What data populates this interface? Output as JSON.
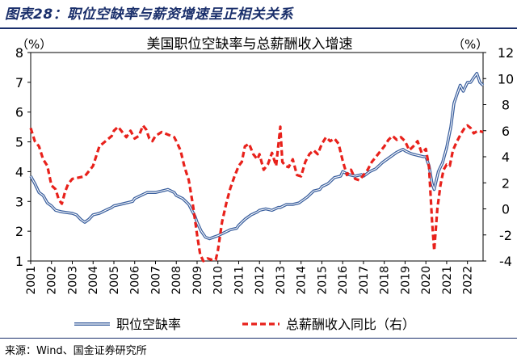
{
  "figure_title": "图表28：职位空缺率与薪资增速呈正相关关系",
  "source": {
    "label": "来源：",
    "text": "Wind、国金证券研究所"
  },
  "chart_data": {
    "type": "line",
    "title": "美国职位空缺率与总薪酬收入增速",
    "y_left_unit": "（%）",
    "y_right_unit": "（%）",
    "x_ticks": [
      "2001",
      "2002",
      "2003",
      "2004",
      "2005",
      "2006",
      "2007",
      "2008",
      "2009",
      "2010",
      "2011",
      "2012",
      "2013",
      "2014",
      "2015",
      "2016",
      "2017",
      "2018",
      "2019",
      "2020",
      "2021",
      "2022"
    ],
    "y_left_ticks": [
      "8",
      "7",
      "6",
      "5",
      "4",
      "3",
      "2",
      "1"
    ],
    "y_right_ticks": [
      "12",
      "10",
      "8",
      "6",
      "4",
      "2",
      "0",
      "-2",
      "-4"
    ],
    "ylim_left": [
      1,
      8
    ],
    "ylim_right": [
      -4,
      12
    ],
    "xlim": [
      2001,
      2022.75
    ],
    "legend_position": "bottom",
    "series": [
      {
        "name": "职位空缺率",
        "axis": "left",
        "color": "#3a5f9e",
        "style": "solid",
        "points": [
          [
            2001.0,
            3.85
          ],
          [
            2001.2,
            3.6
          ],
          [
            2001.4,
            3.3
          ],
          [
            2001.6,
            3.2
          ],
          [
            2001.8,
            2.95
          ],
          [
            2002.0,
            2.85
          ],
          [
            2002.2,
            2.7
          ],
          [
            2002.5,
            2.65
          ],
          [
            2002.8,
            2.62
          ],
          [
            2003.0,
            2.6
          ],
          [
            2003.2,
            2.55
          ],
          [
            2003.4,
            2.4
          ],
          [
            2003.6,
            2.3
          ],
          [
            2003.8,
            2.4
          ],
          [
            2004.0,
            2.55
          ],
          [
            2004.3,
            2.6
          ],
          [
            2004.6,
            2.7
          ],
          [
            2004.9,
            2.8
          ],
          [
            2005.0,
            2.85
          ],
          [
            2005.3,
            2.9
          ],
          [
            2005.6,
            2.95
          ],
          [
            2005.9,
            3.0
          ],
          [
            2006.0,
            3.1
          ],
          [
            2006.3,
            3.2
          ],
          [
            2006.6,
            3.3
          ],
          [
            2006.9,
            3.3
          ],
          [
            2007.0,
            3.3
          ],
          [
            2007.3,
            3.35
          ],
          [
            2007.6,
            3.4
          ],
          [
            2007.9,
            3.3
          ],
          [
            2008.0,
            3.2
          ],
          [
            2008.3,
            3.1
          ],
          [
            2008.6,
            2.9
          ],
          [
            2008.9,
            2.5
          ],
          [
            2009.0,
            2.3
          ],
          [
            2009.2,
            2.0
          ],
          [
            2009.4,
            1.8
          ],
          [
            2009.6,
            1.75
          ],
          [
            2009.8,
            1.8
          ],
          [
            2010.0,
            1.85
          ],
          [
            2010.3,
            1.95
          ],
          [
            2010.6,
            2.05
          ],
          [
            2010.9,
            2.1
          ],
          [
            2011.0,
            2.2
          ],
          [
            2011.3,
            2.4
          ],
          [
            2011.6,
            2.55
          ],
          [
            2011.9,
            2.65
          ],
          [
            2012.0,
            2.7
          ],
          [
            2012.3,
            2.75
          ],
          [
            2012.6,
            2.7
          ],
          [
            2012.9,
            2.8
          ],
          [
            2013.0,
            2.8
          ],
          [
            2013.3,
            2.9
          ],
          [
            2013.6,
            2.9
          ],
          [
            2013.9,
            2.95
          ],
          [
            2014.0,
            3.0
          ],
          [
            2014.3,
            3.15
          ],
          [
            2014.6,
            3.35
          ],
          [
            2014.9,
            3.4
          ],
          [
            2015.0,
            3.5
          ],
          [
            2015.3,
            3.6
          ],
          [
            2015.6,
            3.8
          ],
          [
            2015.9,
            3.85
          ],
          [
            2016.0,
            4.0
          ],
          [
            2016.3,
            3.9
          ],
          [
            2016.6,
            3.85
          ],
          [
            2016.9,
            3.9
          ],
          [
            2017.0,
            3.85
          ],
          [
            2017.3,
            4.0
          ],
          [
            2017.6,
            4.1
          ],
          [
            2017.9,
            4.3
          ],
          [
            2018.0,
            4.35
          ],
          [
            2018.3,
            4.5
          ],
          [
            2018.6,
            4.65
          ],
          [
            2018.9,
            4.75
          ],
          [
            2019.0,
            4.7
          ],
          [
            2019.3,
            4.6
          ],
          [
            2019.6,
            4.55
          ],
          [
            2019.9,
            4.5
          ],
          [
            2020.0,
            4.5
          ],
          [
            2020.15,
            4.2
          ],
          [
            2020.3,
            3.6
          ],
          [
            2020.4,
            3.4
          ],
          [
            2020.6,
            4.0
          ],
          [
            2020.8,
            4.3
          ],
          [
            2021.0,
            4.8
          ],
          [
            2021.2,
            5.5
          ],
          [
            2021.35,
            6.3
          ],
          [
            2021.5,
            6.6
          ],
          [
            2021.65,
            6.9
          ],
          [
            2021.8,
            6.7
          ],
          [
            2022.0,
            7.0
          ],
          [
            2022.15,
            7.0
          ],
          [
            2022.3,
            7.15
          ],
          [
            2022.45,
            7.3
          ],
          [
            2022.6,
            7.0
          ],
          [
            2022.75,
            6.9
          ]
        ]
      },
      {
        "name": "总薪酬收入同比（右）",
        "axis": "right",
        "color": "#e8211b",
        "style": "dashed",
        "points": [
          [
            2001.0,
            6.2
          ],
          [
            2001.2,
            5.2
          ],
          [
            2001.4,
            4.8
          ],
          [
            2001.6,
            3.8
          ],
          [
            2001.8,
            3.3
          ],
          [
            2002.0,
            1.8
          ],
          [
            2002.2,
            1.5
          ],
          [
            2002.35,
            0.7
          ],
          [
            2002.5,
            0.4
          ],
          [
            2002.65,
            1.3
          ],
          [
            2002.8,
            1.9
          ],
          [
            2003.0,
            2.3
          ],
          [
            2003.3,
            2.4
          ],
          [
            2003.6,
            2.5
          ],
          [
            2003.9,
            3.1
          ],
          [
            2004.0,
            3.3
          ],
          [
            2004.3,
            4.8
          ],
          [
            2004.6,
            5.2
          ],
          [
            2004.9,
            5.6
          ],
          [
            2005.0,
            6.0
          ],
          [
            2005.2,
            6.3
          ],
          [
            2005.4,
            5.9
          ],
          [
            2005.6,
            5.5
          ],
          [
            2005.8,
            6.0
          ],
          [
            2006.0,
            5.4
          ],
          [
            2006.2,
            5.6
          ],
          [
            2006.4,
            6.4
          ],
          [
            2006.55,
            6.1
          ],
          [
            2006.7,
            5.4
          ],
          [
            2006.85,
            5.2
          ],
          [
            2007.0,
            5.6
          ],
          [
            2007.3,
            5.9
          ],
          [
            2007.6,
            5.7
          ],
          [
            2007.9,
            5.5
          ],
          [
            2008.0,
            5.2
          ],
          [
            2008.2,
            4.5
          ],
          [
            2008.4,
            3.2
          ],
          [
            2008.6,
            2.2
          ],
          [
            2008.8,
            0.3
          ],
          [
            2009.0,
            -2.0
          ],
          [
            2009.15,
            -3.5
          ],
          [
            2009.3,
            -4.0
          ],
          [
            2009.5,
            -3.8
          ],
          [
            2009.7,
            -3.9
          ],
          [
            2009.9,
            -3.9
          ],
          [
            2010.0,
            -3.2
          ],
          [
            2010.2,
            -1.0
          ],
          [
            2010.4,
            0.4
          ],
          [
            2010.6,
            1.6
          ],
          [
            2010.8,
            2.5
          ],
          [
            2011.0,
            3.3
          ],
          [
            2011.15,
            3.6
          ],
          [
            2011.3,
            4.8
          ],
          [
            2011.5,
            5.0
          ],
          [
            2011.7,
            4.2
          ],
          [
            2011.9,
            3.8
          ],
          [
            2012.0,
            4.2
          ],
          [
            2012.2,
            3.0
          ],
          [
            2012.4,
            3.4
          ],
          [
            2012.6,
            4.3
          ],
          [
            2012.8,
            3.3
          ],
          [
            2013.0,
            6.3
          ],
          [
            2013.1,
            3.6
          ],
          [
            2013.25,
            3.3
          ],
          [
            2013.4,
            3.2
          ],
          [
            2013.6,
            3.8
          ],
          [
            2013.8,
            2.6
          ],
          [
            2014.0,
            2.5
          ],
          [
            2014.2,
            3.6
          ],
          [
            2014.4,
            4.2
          ],
          [
            2014.6,
            4.5
          ],
          [
            2014.8,
            4.2
          ],
          [
            2015.0,
            5.0
          ],
          [
            2015.2,
            5.5
          ],
          [
            2015.4,
            5.2
          ],
          [
            2015.6,
            5.4
          ],
          [
            2015.8,
            5.0
          ],
          [
            2016.0,
            3.7
          ],
          [
            2016.2,
            2.6
          ],
          [
            2016.4,
            3.0
          ],
          [
            2016.6,
            2.3
          ],
          [
            2016.8,
            2.2
          ],
          [
            2017.0,
            2.6
          ],
          [
            2017.2,
            3.0
          ],
          [
            2017.4,
            3.6
          ],
          [
            2017.6,
            4.0
          ],
          [
            2017.8,
            4.4
          ],
          [
            2018.0,
            4.8
          ],
          [
            2018.2,
            5.3
          ],
          [
            2018.4,
            5.6
          ],
          [
            2018.6,
            5.3
          ],
          [
            2018.8,
            5.5
          ],
          [
            2019.0,
            5.2
          ],
          [
            2019.2,
            4.5
          ],
          [
            2019.4,
            4.8
          ],
          [
            2019.6,
            5.2
          ],
          [
            2019.8,
            4.3
          ],
          [
            2020.0,
            4.6
          ],
          [
            2020.15,
            3.2
          ],
          [
            2020.3,
            -1.0
          ],
          [
            2020.4,
            -3.2
          ],
          [
            2020.55,
            0.0
          ],
          [
            2020.7,
            1.8
          ],
          [
            2020.85,
            3.0
          ],
          [
            2021.0,
            3.4
          ],
          [
            2021.15,
            3.3
          ],
          [
            2021.3,
            4.5
          ],
          [
            2021.5,
            5.2
          ],
          [
            2021.7,
            5.8
          ],
          [
            2021.9,
            6.3
          ],
          [
            2022.0,
            6.4
          ],
          [
            2022.15,
            6.2
          ],
          [
            2022.3,
            5.8
          ],
          [
            2022.5,
            6.0
          ],
          [
            2022.75,
            5.9
          ]
        ]
      }
    ]
  }
}
